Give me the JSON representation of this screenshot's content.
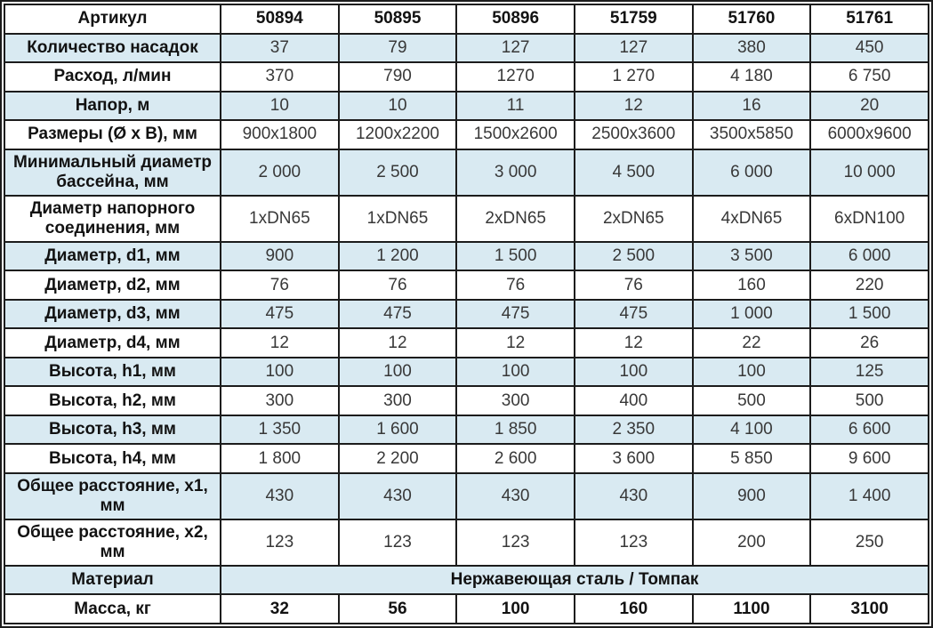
{
  "table": {
    "colors": {
      "shaded_bg": "#d9eaf2",
      "border": "#1c1c1c"
    },
    "header": {
      "label": "Артикул",
      "articles": [
        "50894",
        "50895",
        "50896",
        "51759",
        "51760",
        "51761"
      ]
    },
    "rows": [
      {
        "label": "Количество насадок",
        "shaded": true,
        "values": [
          "37",
          "79",
          "127",
          "127",
          "380",
          "450"
        ]
      },
      {
        "label": "Расход, л/мин",
        "shaded": false,
        "values": [
          "370",
          "790",
          "1270",
          "1 270",
          "4 180",
          "6 750"
        ]
      },
      {
        "label": "Напор, м",
        "shaded": true,
        "values": [
          "10",
          "10",
          "11",
          "12",
          "16",
          "20"
        ]
      },
      {
        "label": "Размеры (Ø x В), мм",
        "shaded": false,
        "values": [
          "900x1800",
          "1200x2200",
          "1500x2600",
          "2500x3600",
          "3500x5850",
          "6000x9600"
        ]
      },
      {
        "label": "Минимальный диаметр бассейна, мм",
        "shaded": true,
        "values": [
          "2 000",
          "2 500",
          "3 000",
          "4 500",
          "6 000",
          "10 000"
        ]
      },
      {
        "label": "Диаметр напорного соединения, мм",
        "shaded": false,
        "values": [
          "1xDN65",
          "1xDN65",
          "2xDN65",
          "2xDN65",
          "4xDN65",
          "6xDN100"
        ]
      },
      {
        "label": "Диаметр, d1, мм",
        "shaded": true,
        "values": [
          "900",
          "1 200",
          "1 500",
          "2 500",
          "3 500",
          "6 000"
        ]
      },
      {
        "label": "Диаметр, d2, мм",
        "shaded": false,
        "values": [
          "76",
          "76",
          "76",
          "76",
          "160",
          "220"
        ]
      },
      {
        "label": "Диаметр, d3, мм",
        "shaded": true,
        "values": [
          "475",
          "475",
          "475",
          "475",
          "1 000",
          "1 500"
        ]
      },
      {
        "label": "Диаметр, d4, мм",
        "shaded": false,
        "values": [
          "12",
          "12",
          "12",
          "12",
          "22",
          "26"
        ]
      },
      {
        "label": "Высота, h1, мм",
        "shaded": true,
        "values": [
          "100",
          "100",
          "100",
          "100",
          "100",
          "125"
        ]
      },
      {
        "label": "Высота, h2, мм",
        "shaded": false,
        "values": [
          "300",
          "300",
          "300",
          "400",
          "500",
          "500"
        ]
      },
      {
        "label": "Высота, h3, мм",
        "shaded": true,
        "values": [
          "1 350",
          "1 600",
          "1 850",
          "2 350",
          "4 100",
          "6 600"
        ]
      },
      {
        "label": "Высота, h4, мм",
        "shaded": false,
        "values": [
          "1 800",
          "2 200",
          "2 600",
          "3 600",
          "5 850",
          "9 600"
        ]
      },
      {
        "label": "Общее расстояние, x1, мм",
        "shaded": true,
        "values": [
          "430",
          "430",
          "430",
          "430",
          "900",
          "1 400"
        ]
      },
      {
        "label": "Общее расстояние, x2, мм",
        "shaded": false,
        "values": [
          "123",
          "123",
          "123",
          "123",
          "200",
          "250"
        ]
      }
    ],
    "material_row": {
      "label": "Материал",
      "value": "Нержавеющая сталь / Томпак",
      "shaded": true
    },
    "mass_row": {
      "label": "Масса, кг",
      "shaded": false,
      "values": [
        "32",
        "56",
        "100",
        "160",
        "1100",
        "3100"
      ]
    }
  }
}
